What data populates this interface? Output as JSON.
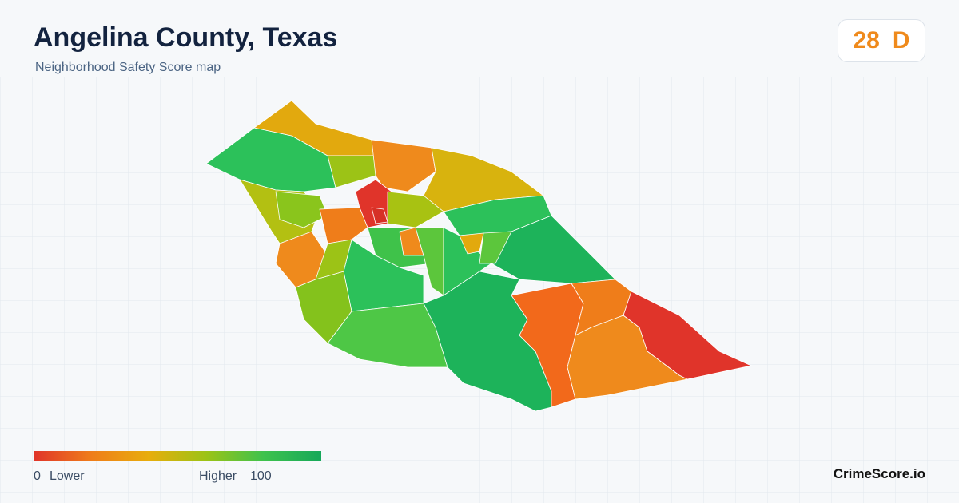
{
  "header": {
    "title": "Angelina County, Texas",
    "subtitle": "Neighborhood Safety Score map"
  },
  "badge": {
    "score": 28,
    "grade": "D"
  },
  "legend": {
    "min": 0,
    "min_label": "Lower",
    "max_label": "Higher",
    "max": 100
  },
  "footer": {
    "brand": "CrimeScore.io"
  }
}
